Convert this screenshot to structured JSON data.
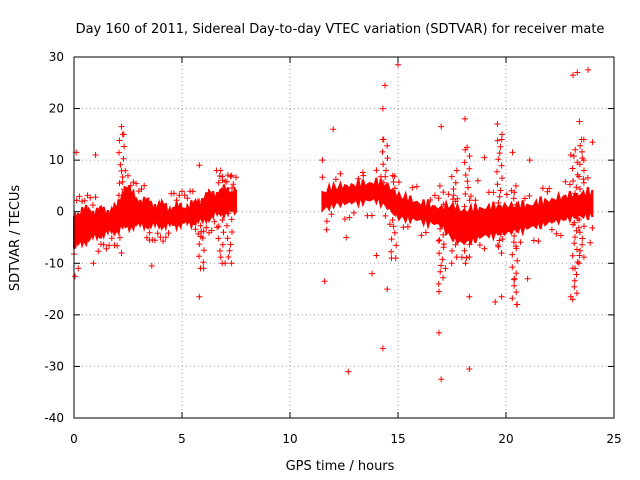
{
  "chart_data": {
    "type": "scatter",
    "title": "Day 160 of 2011, Sidereal Day-to-day VTEC variation (SDTVAR) for receiver mate",
    "xlabel": "GPS time / hours",
    "ylabel": "SDTVAR / TECUs",
    "xlim": [
      0,
      25
    ],
    "ylim": [
      -40,
      30
    ],
    "x_ticks": [
      0,
      5,
      10,
      15,
      20,
      25
    ],
    "y_ticks": [
      -40,
      -30,
      -20,
      -10,
      0,
      10,
      20,
      30
    ],
    "grid": true,
    "marker": "+",
    "color": "#ff0000",
    "series": [
      {
        "name": "SDTVAR",
        "band_segments": [
          {
            "x": [
              0.0,
              0.3,
              0.8,
              1.5,
              2.0,
              2.2,
              2.4,
              2.8,
              3.5,
              4.5,
              5.5,
              6.0,
              6.5,
              7.0,
              7.5
            ],
            "center": [
              -4,
              -3,
              -2.5,
              -2,
              -1.5,
              0,
              1,
              0,
              -0.5,
              -1,
              -0.5,
              0.5,
              1.5,
              2,
              2
            ],
            "half_width": [
              3,
              3,
              2.5,
              2,
              2,
              3,
              4,
              2.5,
              2,
              1.5,
              1.5,
              2,
              2,
              2,
              2
            ]
          },
          {
            "x": [
              11.5,
              12.0,
              13.0,
              14.0,
              14.5,
              15.0,
              16.0,
              17.0,
              17.5,
              18.0,
              19.0,
              20.0,
              21.0,
              22.0,
              23.0,
              24.0
            ],
            "center": [
              2,
              3,
              3.5,
              4,
              3,
              1,
              0,
              -1,
              -2,
              -3,
              -2,
              -1.5,
              -1,
              0,
              1,
              1.5
            ],
            "half_width": [
              1.5,
              1.5,
              1.5,
              1.5,
              2,
              2,
              1.5,
              1.5,
              3,
              3,
              2.5,
              2.5,
              2,
              2,
              2,
              2
            ]
          }
        ],
        "outliers": [
          {
            "x": 0.1,
            "y": 11.5
          },
          {
            "x": 0.05,
            "y": -12.5
          },
          {
            "x": 0.2,
            "y": -11
          },
          {
            "x": 1.0,
            "y": 11
          },
          {
            "x": 0.9,
            "y": -10
          },
          {
            "x": 2.2,
            "y": 16.5
          },
          {
            "x": 2.3,
            "y": 15
          },
          {
            "x": 2.2,
            "y": -8
          },
          {
            "x": 3.6,
            "y": -10.5
          },
          {
            "x": 3.5,
            "y": -5.5
          },
          {
            "x": 5.8,
            "y": 9
          },
          {
            "x": 5.8,
            "y": -16.5
          },
          {
            "x": 6.0,
            "y": -11
          },
          {
            "x": 6.6,
            "y": 8
          },
          {
            "x": 7.0,
            "y": -10
          },
          {
            "x": 11.5,
            "y": 10
          },
          {
            "x": 11.6,
            "y": -13.5
          },
          {
            "x": 11.7,
            "y": -3.5
          },
          {
            "x": 12.0,
            "y": 16
          },
          {
            "x": 12.7,
            "y": -31
          },
          {
            "x": 12.6,
            "y": -5
          },
          {
            "x": 13.4,
            "y": 7
          },
          {
            "x": 13.8,
            "y": -12
          },
          {
            "x": 14.0,
            "y": -8.5
          },
          {
            "x": 14.4,
            "y": 24.5
          },
          {
            "x": 14.3,
            "y": 20
          },
          {
            "x": 14.3,
            "y": 14
          },
          {
            "x": 14.3,
            "y": -26.5
          },
          {
            "x": 14.5,
            "y": -15
          },
          {
            "x": 14.7,
            "y": -9
          },
          {
            "x": 15.0,
            "y": 28.5
          },
          {
            "x": 17.0,
            "y": 16.5
          },
          {
            "x": 16.9,
            "y": -23.5
          },
          {
            "x": 17.0,
            "y": -32.5
          },
          {
            "x": 16.9,
            "y": -15.5
          },
          {
            "x": 17.2,
            "y": -11
          },
          {
            "x": 18.1,
            "y": 18
          },
          {
            "x": 18.2,
            "y": 12.5
          },
          {
            "x": 18.3,
            "y": -16.5
          },
          {
            "x": 18.3,
            "y": -30.5
          },
          {
            "x": 18.7,
            "y": 6
          },
          {
            "x": 19.0,
            "y": 10.5
          },
          {
            "x": 19.6,
            "y": 17
          },
          {
            "x": 19.8,
            "y": 14
          },
          {
            "x": 19.5,
            "y": -17.5
          },
          {
            "x": 19.8,
            "y": -16.5
          },
          {
            "x": 20.3,
            "y": 11.5
          },
          {
            "x": 20.4,
            "y": -13
          },
          {
            "x": 20.5,
            "y": -18
          },
          {
            "x": 21.1,
            "y": 10
          },
          {
            "x": 21.0,
            "y": -13
          },
          {
            "x": 22.0,
            "y": 4.5
          },
          {
            "x": 23.0,
            "y": 11
          },
          {
            "x": 23.1,
            "y": 26.5
          },
          {
            "x": 23.3,
            "y": 27
          },
          {
            "x": 23.4,
            "y": 17.5
          },
          {
            "x": 23.5,
            "y": 14
          },
          {
            "x": 23.0,
            "y": -16.5
          },
          {
            "x": 23.2,
            "y": -11
          },
          {
            "x": 23.4,
            "y": -8.5
          },
          {
            "x": 23.6,
            "y": 10
          },
          {
            "x": 23.8,
            "y": 27.5
          },
          {
            "x": 24.0,
            "y": 13.5
          },
          {
            "x": 23.9,
            "y": -6
          }
        ],
        "spikes": [
          {
            "x": 2.2,
            "from": 2,
            "to": 15
          },
          {
            "x": 5.9,
            "from": -11,
            "to": 2
          },
          {
            "x": 6.8,
            "from": -10,
            "to": 8
          },
          {
            "x": 7.2,
            "from": -10,
            "to": 7
          },
          {
            "x": 14.4,
            "from": 2,
            "to": 14
          },
          {
            "x": 14.8,
            "from": -9,
            "to": 7
          },
          {
            "x": 17.0,
            "from": -14,
            "to": 5
          },
          {
            "x": 17.6,
            "from": -10,
            "to": 8
          },
          {
            "x": 18.2,
            "from": -10,
            "to": 12
          },
          {
            "x": 19.7,
            "from": -8,
            "to": 15
          },
          {
            "x": 20.4,
            "from": -18,
            "to": 5
          },
          {
            "x": 23.2,
            "from": -17,
            "to": 12
          },
          {
            "x": 23.5,
            "from": -10,
            "to": 14
          }
        ]
      }
    ]
  }
}
